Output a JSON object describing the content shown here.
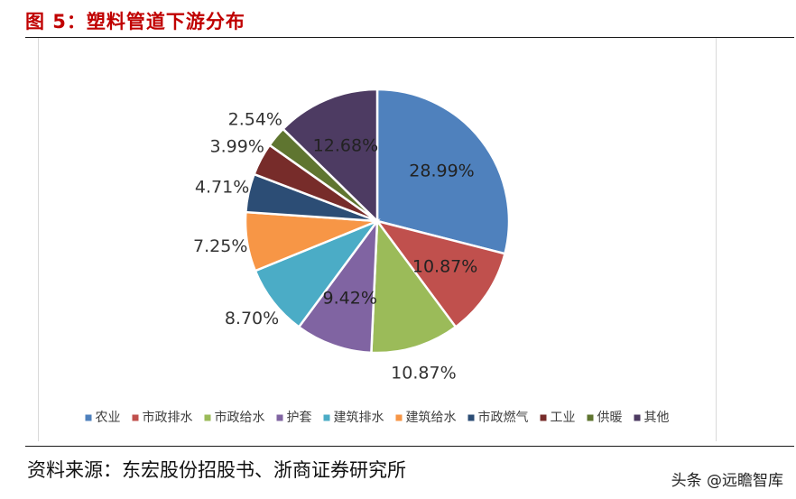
{
  "figure": {
    "title": "图 5：塑料管道下游分布",
    "source": "资料来源：东宏股份招股书、浙商证券研究所",
    "watermark": "头条 @远瞻智库"
  },
  "chart_data": {
    "type": "pie",
    "categories": [
      "农业",
      "市政排水",
      "市政给水",
      "护套",
      "建筑排水",
      "建筑给水",
      "市政燃气",
      "工业",
      "供暖",
      "其他"
    ],
    "values": [
      28.99,
      10.87,
      10.87,
      9.42,
      8.7,
      7.25,
      4.71,
      3.99,
      2.54,
      12.68
    ],
    "labels": [
      "28.99%",
      "10.87%",
      "10.87%",
      "9.42%",
      "8.70%",
      "7.25%",
      "4.71%",
      "3.99%",
      "2.54%",
      "12.68%"
    ],
    "colors": [
      "#4f81bd",
      "#c0504d",
      "#9bbb59",
      "#8064a2",
      "#4bacc6",
      "#f79646",
      "#2c4d75",
      "#772c2a",
      "#5f7530",
      "#4d3b62"
    ],
    "legend_position": "bottom",
    "start_angle": "12 o'clock",
    "direction": "clockwise"
  }
}
